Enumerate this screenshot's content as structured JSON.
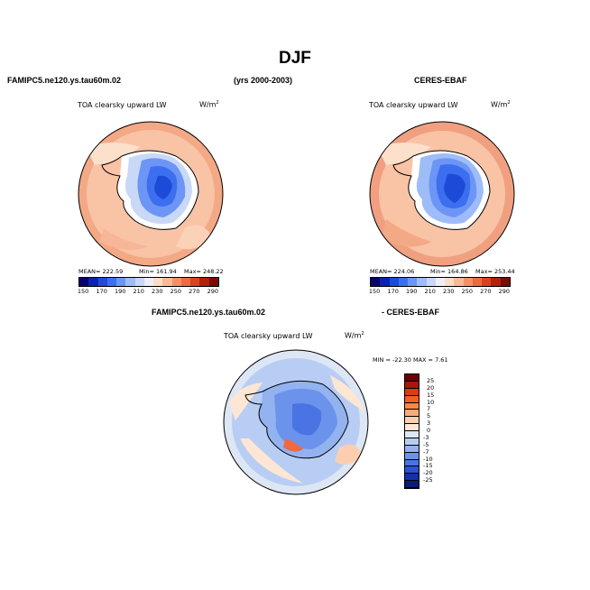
{
  "title": "DJF",
  "case_name": "FAMIPC5.ne120.ys.tau60m.02",
  "years": "(yrs 2000-2003)",
  "obs_name": "CERES-EBAF",
  "diff_name": "- CERES-EBAF",
  "variable": "TOA clearsky upward LW",
  "units": "W/m",
  "units_exp": "2",
  "panel1": {
    "mean": "MEAN= 222.59",
    "min": "Min= 161.94",
    "max": "Max= 248.22"
  },
  "panel2": {
    "mean": "MEAN= 224.06",
    "min": "Min= 164.86",
    "max": "Max= 253.44"
  },
  "panel3": {
    "minmax": "MIN = -22.30  MAX =    7.61"
  },
  "colorbar_main": {
    "labels": [
      "150",
      "170",
      "190",
      "210",
      "230",
      "250",
      "270",
      "290"
    ],
    "colors": [
      "#08006e",
      "#0b22b0",
      "#1e4ad8",
      "#3c6ef0",
      "#6d95f5",
      "#9ebcf7",
      "#c8d8f6",
      "#eeeef8",
      "#fddcc6",
      "#fbb897",
      "#f59066",
      "#ee6a40",
      "#d8441e",
      "#b0220a",
      "#7a0c05"
    ]
  },
  "colorbar_diff": {
    "labels": [
      "25",
      "20",
      "15",
      "10",
      "7",
      "5",
      "3",
      "0",
      "-3",
      "-5",
      "-7",
      "-10",
      "-15",
      "-20",
      "-25"
    ],
    "colors": [
      "#6e0000",
      "#a81605",
      "#d83c0f",
      "#f06020",
      "#f88844",
      "#fbab78",
      "#fcceb0",
      "#fde6d4",
      "#dde6f5",
      "#b8cdf3",
      "#93b2f0",
      "#6c93ec",
      "#4a74e4",
      "#2c52d0",
      "#1630a8",
      "#081c78"
    ]
  }
}
